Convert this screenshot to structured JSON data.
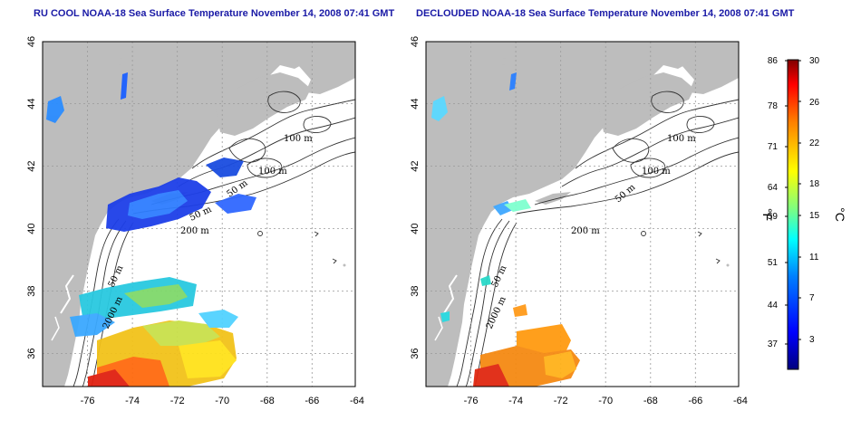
{
  "panels": [
    {
      "title": "RU COOL NOAA-18 Sea Surface Temperature November 14, 2008 07:41 GMT",
      "contour_labels": [
        "100 m",
        "100 m",
        "50 m",
        "50 m",
        "200 m",
        "50 m",
        "2000 m"
      ]
    },
    {
      "title": "DECLOUDED NOAA-18 Sea Surface Temperature November 14, 2008 07:41 GMT",
      "contour_labels": [
        "100 m",
        "100 m",
        "50 m",
        "200 m",
        "50 m",
        "2000 m"
      ]
    }
  ],
  "axes": {
    "x_ticks": [
      "-76",
      "-74",
      "-72",
      "-70",
      "-68",
      "-66",
      "-64"
    ],
    "y_ticks": [
      "46",
      "44",
      "42",
      "40",
      "38",
      "36"
    ]
  },
  "colorbar": {
    "unit_left": "°F",
    "unit_right": "°C",
    "fahrenheit_ticks": [
      "86",
      "78",
      "71",
      "64",
      "59",
      "51",
      "44",
      "37"
    ],
    "celsius_ticks": [
      "30",
      "26",
      "22",
      "18",
      "15",
      "11",
      "7",
      "3"
    ],
    "colors": [
      "#00007f",
      "#0000ff",
      "#007fff",
      "#00ffff",
      "#7fff7f",
      "#ffff00",
      "#ff7f00",
      "#ff0000",
      "#7f0000"
    ]
  }
}
